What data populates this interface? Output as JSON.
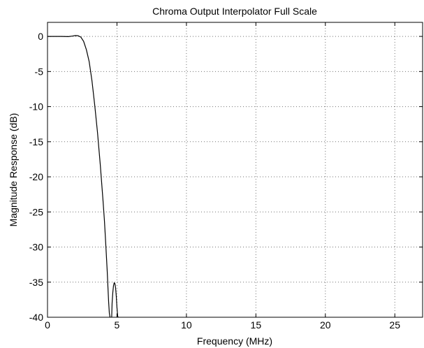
{
  "chart_data": {
    "type": "line",
    "title": "Chroma Output Interpolator Full Scale",
    "xlabel": "Frequency (MHz)",
    "ylabel": "Magnitude Response (dB)",
    "xlim": [
      0,
      27
    ],
    "ylim": [
      -40,
      2
    ],
    "xticks": [
      0,
      5,
      10,
      15,
      20,
      25
    ],
    "yticks": [
      0,
      -5,
      -10,
      -15,
      -20,
      -25,
      -30,
      -35,
      -40
    ],
    "grid": true,
    "series": [
      {
        "x": [
          0,
          0.5,
          1.0,
          1.5,
          1.8,
          2.0,
          2.2,
          2.4,
          2.6,
          2.8,
          3.0,
          3.2,
          3.4,
          3.6,
          3.8,
          4.0,
          4.1,
          4.2,
          4.3,
          4.35,
          4.4,
          4.45,
          4.5
        ],
        "y": [
          0,
          0,
          0,
          -0.03,
          0.05,
          0.12,
          0.1,
          -0.1,
          -0.7,
          -1.9,
          -3.6,
          -6.3,
          -9.8,
          -13.7,
          -18.3,
          -23.5,
          -26.3,
          -29.8,
          -33.5,
          -35.7,
          -37.8,
          -39.4,
          -40
        ]
      },
      {
        "x": [
          4.62,
          4.65,
          4.7,
          4.75,
          4.8,
          4.85,
          4.9,
          4.95,
          5.0,
          5.05,
          5.08
        ],
        "y": [
          -40,
          -38.0,
          -36.5,
          -35.5,
          -35.1,
          -35.2,
          -35.8,
          -37.0,
          -38.6,
          -39.8,
          -40
        ]
      }
    ]
  }
}
